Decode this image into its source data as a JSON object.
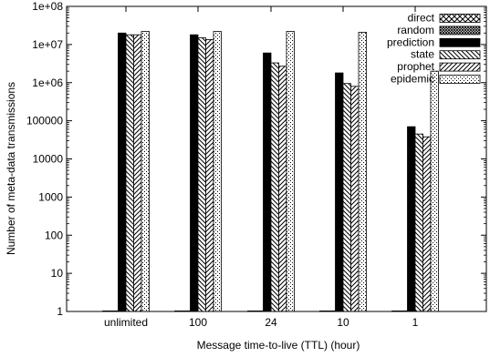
{
  "chart_data": {
    "type": "bar",
    "title": "",
    "xlabel": "Message time-to-live (TTL) (hour)",
    "ylabel": "Number of meta-data transmissions",
    "yscale": "log",
    "ylim": [
      1,
      100000000
    ],
    "yticks": [
      1,
      10,
      100,
      1000,
      10000,
      100000,
      1000000,
      10000000,
      100000000
    ],
    "ytick_labels": [
      "1",
      "10",
      "100",
      "1000",
      "10000",
      "100000",
      "1e+06",
      "1e+07",
      "1e+08"
    ],
    "categories": [
      "unlimited",
      "100",
      "24",
      "10",
      "1"
    ],
    "legend_position": "top-right",
    "grid": false,
    "series": [
      {
        "name": "direct",
        "pattern": "crosshatch",
        "values": [
          1,
          1,
          1,
          1,
          1
        ]
      },
      {
        "name": "random",
        "pattern": "dense-crosshatch",
        "values": [
          1,
          1,
          1,
          1,
          1
        ]
      },
      {
        "name": "prediction",
        "pattern": "solid-black",
        "values": [
          20000000,
          18000000,
          6000000,
          1800000,
          70000
        ]
      },
      {
        "name": "state",
        "pattern": "back-diagonal",
        "values": [
          18000000,
          15000000,
          3300000,
          950000,
          45000
        ]
      },
      {
        "name": "prophet",
        "pattern": "forward-diagonal",
        "values": [
          18000000,
          13500000,
          2700000,
          800000,
          38000
        ]
      },
      {
        "name": "epidemic",
        "pattern": "dots",
        "values": [
          22000000,
          22000000,
          22000000,
          21000000,
          2000000
        ]
      }
    ]
  }
}
